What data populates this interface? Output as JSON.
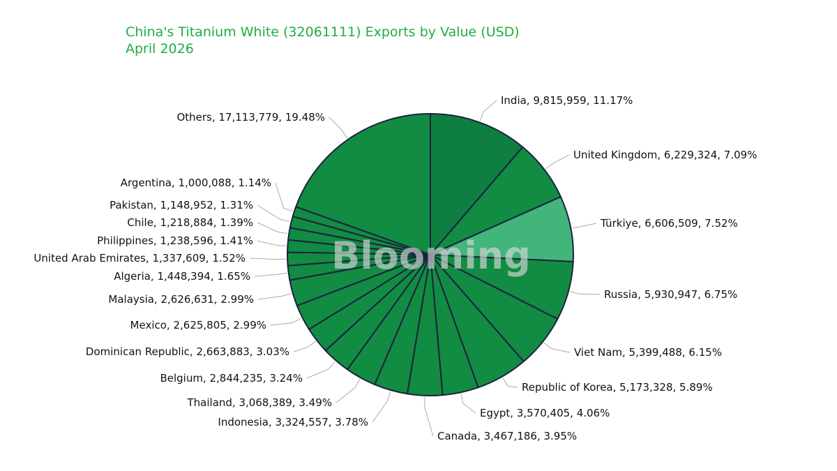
{
  "title": "China's Titanium White (32061111) Exports by Value (USD)",
  "subtitle": "April 2026",
  "watermark": "Blooming",
  "colors": {
    "title": "#1fae3f",
    "slice_default": "#118c42",
    "slice_dark": "#0e7f40",
    "slice_light": "#41b57a",
    "slice_stroke": "#1b2340",
    "leader": "#aaaaaa"
  },
  "chart_data": {
    "type": "pie",
    "title": "China's Titanium White (32061111) Exports by Value (USD)",
    "subtitle": "April 2026",
    "unit": "USD",
    "start_angle": "12 o'clock",
    "direction": "clockwise",
    "slices": [
      {
        "name": "India",
        "value": 9815959,
        "percent": "11.17%",
        "label": "India, 9,815,959, 11.17%"
      },
      {
        "name": "United Kingdom",
        "value": 6229324,
        "percent": "7.09%",
        "label": "United Kingdom, 6,229,324, 7.09%"
      },
      {
        "name": "Türkiye",
        "value": 6606509,
        "percent": "7.52%",
        "label": "Türkiye, 6,606,509, 7.52%"
      },
      {
        "name": "Russia",
        "value": 5930947,
        "percent": "6.75%",
        "label": "Russia, 5,930,947, 6.75%"
      },
      {
        "name": "Viet Nam",
        "value": 5399488,
        "percent": "6.15%",
        "label": "Viet Nam, 5,399,488, 6.15%"
      },
      {
        "name": "Republic of Korea",
        "value": 5173328,
        "percent": "5.89%",
        "label": "Republic of Korea, 5,173,328, 5.89%"
      },
      {
        "name": "Egypt",
        "value": 3570405,
        "percent": "4.06%",
        "label": "Egypt, 3,570,405, 4.06%"
      },
      {
        "name": "Canada",
        "value": 3467186,
        "percent": "3.95%",
        "label": "Canada, 3,467,186, 3.95%"
      },
      {
        "name": "Indonesia",
        "value": 3324557,
        "percent": "3.78%",
        "label": "Indonesia, 3,324,557, 3.78%"
      },
      {
        "name": "Thailand",
        "value": 3068389,
        "percent": "3.49%",
        "label": "Thailand, 3,068,389, 3.49%"
      },
      {
        "name": "Belgium",
        "value": 2844235,
        "percent": "3.24%",
        "label": "Belgium, 2,844,235, 3.24%"
      },
      {
        "name": "Dominican Republic",
        "value": 2663883,
        "percent": "3.03%",
        "label": "Dominican Republic, 2,663,883, 3.03%"
      },
      {
        "name": "Mexico",
        "value": 2625805,
        "percent": "2.99%",
        "label": "Mexico, 2,625,805, 2.99%"
      },
      {
        "name": "Malaysia",
        "value": 2626631,
        "percent": "2.99%",
        "label": "Malaysia, 2,626,631, 2.99%"
      },
      {
        "name": "Algeria",
        "value": 1448394,
        "percent": "1.65%",
        "label": "Algeria, 1,448,394, 1.65%"
      },
      {
        "name": "United Arab Emirates",
        "value": 1337609,
        "percent": "1.52%",
        "label": "United Arab Emirates, 1,337,609, 1.52%"
      },
      {
        "name": "Philippines",
        "value": 1238596,
        "percent": "1.41%",
        "label": "Philippines, 1,238,596, 1.41%"
      },
      {
        "name": "Chile",
        "value": 1218884,
        "percent": "1.39%",
        "label": "Chile, 1,218,884, 1.39%"
      },
      {
        "name": "Pakistan",
        "value": 1148952,
        "percent": "1.31%",
        "label": "Pakistan, 1,148,952, 1.31%"
      },
      {
        "name": "Argentina",
        "value": 1000088,
        "percent": "1.14%",
        "label": "Argentina, 1,000,088, 1.14%"
      },
      {
        "name": "Others",
        "value": 17113779,
        "percent": "19.48%",
        "label": "Others, 17,113,779, 19.48%"
      }
    ]
  }
}
